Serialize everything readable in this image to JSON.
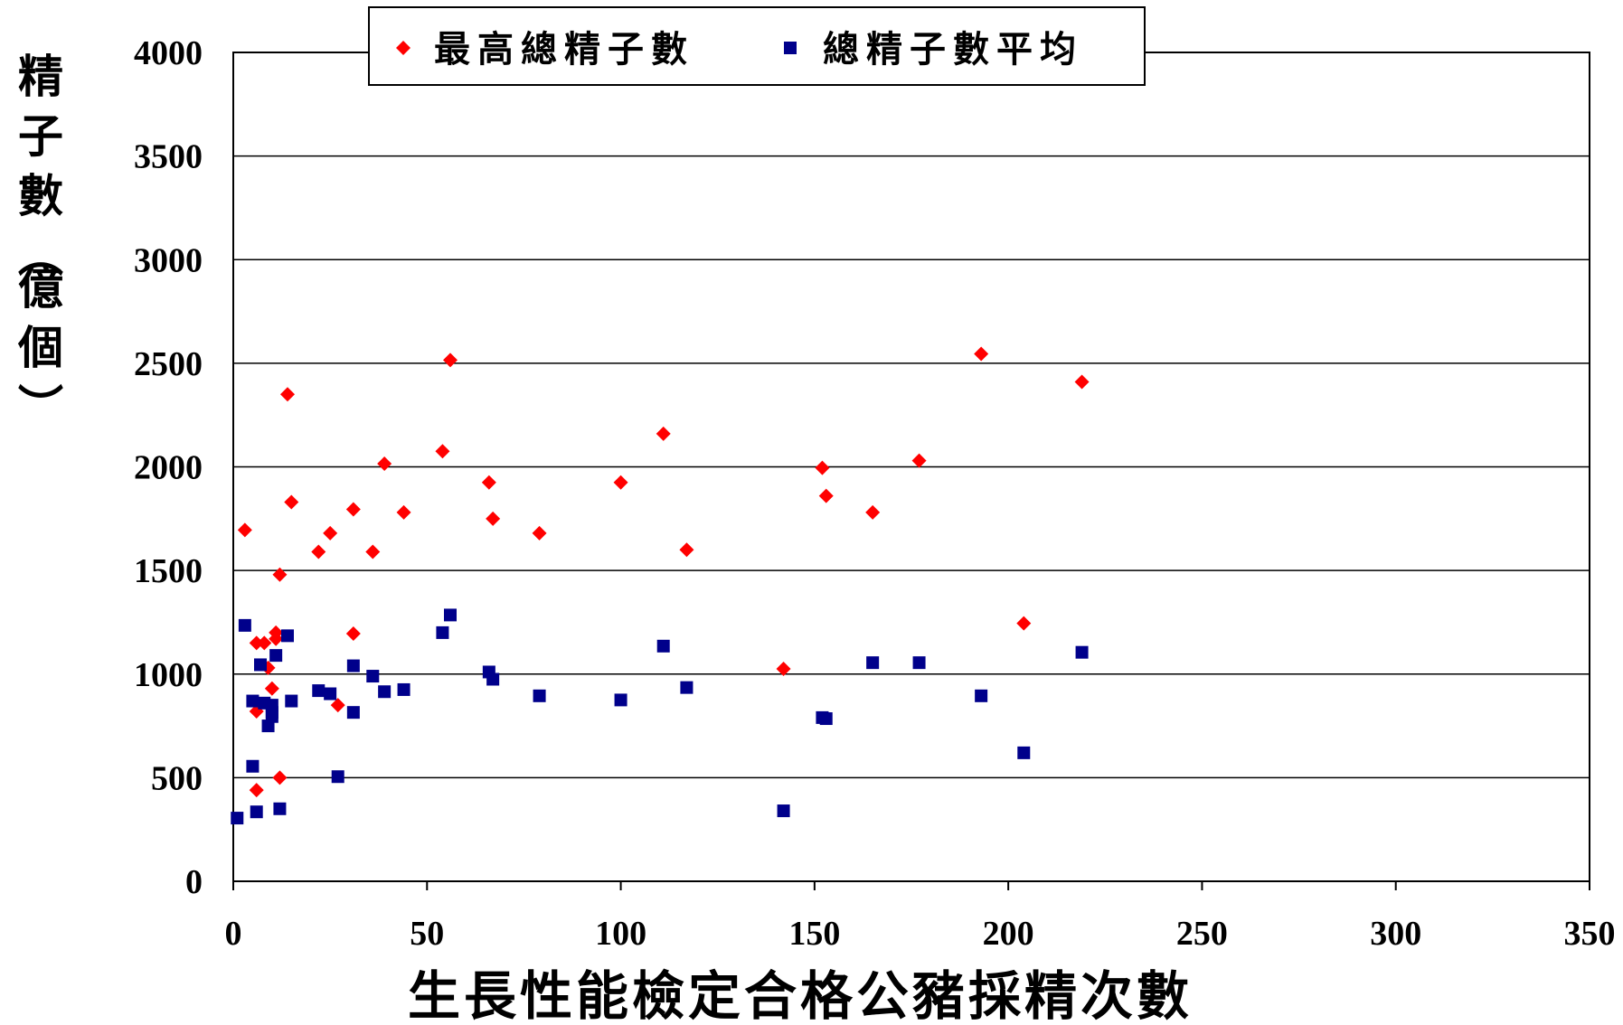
{
  "chart_data": {
    "type": "scatter",
    "title": "",
    "xlabel": "生長性能檢定合格公豬採精次數",
    "ylabel": "精子數(億個)",
    "xlim": [
      0,
      350
    ],
    "ylim": [
      0,
      4000
    ],
    "x_ticks": [
      "0",
      "50",
      "100",
      "150",
      "200",
      "250",
      "300",
      "350"
    ],
    "y_ticks": [
      "0",
      "500",
      "1000",
      "1500",
      "2000",
      "2500",
      "3000",
      "3500",
      "4000"
    ],
    "grid": "horizontal",
    "legend_position": "top",
    "series": [
      {
        "name": "最高總精子數",
        "color": "#ff0000",
        "marker": "diamond",
        "points": [
          [
            3,
            1695
          ],
          [
            6,
            1150
          ],
          [
            6,
            820
          ],
          [
            6,
            440
          ],
          [
            8,
            1150
          ],
          [
            9,
            1030
          ],
          [
            10,
            930
          ],
          [
            11,
            1200
          ],
          [
            11,
            1170
          ],
          [
            12,
            1480
          ],
          [
            12,
            500
          ],
          [
            14,
            2350
          ],
          [
            15,
            1830
          ],
          [
            22,
            1590
          ],
          [
            25,
            1680
          ],
          [
            27,
            850
          ],
          [
            31,
            1795
          ],
          [
            31,
            1195
          ],
          [
            36,
            1590
          ],
          [
            39,
            2015
          ],
          [
            44,
            1780
          ],
          [
            54,
            2075
          ],
          [
            56,
            2515
          ],
          [
            66,
            1925
          ],
          [
            67,
            1750
          ],
          [
            79,
            1680
          ],
          [
            100,
            1925
          ],
          [
            111,
            2160
          ],
          [
            117,
            1600
          ],
          [
            142,
            1025
          ],
          [
            152,
            1995
          ],
          [
            153,
            1860
          ],
          [
            165,
            1780
          ],
          [
            177,
            2030
          ],
          [
            193,
            2545
          ],
          [
            204,
            1245
          ],
          [
            219,
            2410
          ]
        ]
      },
      {
        "name": "總精子數平均",
        "color": "#00008b",
        "marker": "square",
        "points": [
          [
            1,
            305
          ],
          [
            3,
            1235
          ],
          [
            5,
            870
          ],
          [
            5,
            555
          ],
          [
            6,
            335
          ],
          [
            7,
            1045
          ],
          [
            8,
            860
          ],
          [
            9,
            750
          ],
          [
            10,
            850
          ],
          [
            10,
            815
          ],
          [
            10,
            795
          ],
          [
            11,
            1090
          ],
          [
            12,
            350
          ],
          [
            14,
            1185
          ],
          [
            15,
            870
          ],
          [
            22,
            920
          ],
          [
            25,
            905
          ],
          [
            27,
            505
          ],
          [
            31,
            1040
          ],
          [
            31,
            815
          ],
          [
            36,
            990
          ],
          [
            39,
            915
          ],
          [
            44,
            925
          ],
          [
            54,
            1200
          ],
          [
            56,
            1285
          ],
          [
            66,
            1010
          ],
          [
            67,
            975
          ],
          [
            79,
            895
          ],
          [
            100,
            875
          ],
          [
            111,
            1135
          ],
          [
            117,
            935
          ],
          [
            142,
            340
          ],
          [
            152,
            790
          ],
          [
            153,
            785
          ],
          [
            165,
            1055
          ],
          [
            177,
            1055
          ],
          [
            193,
            895
          ],
          [
            204,
            620
          ],
          [
            219,
            1105
          ]
        ]
      }
    ]
  }
}
